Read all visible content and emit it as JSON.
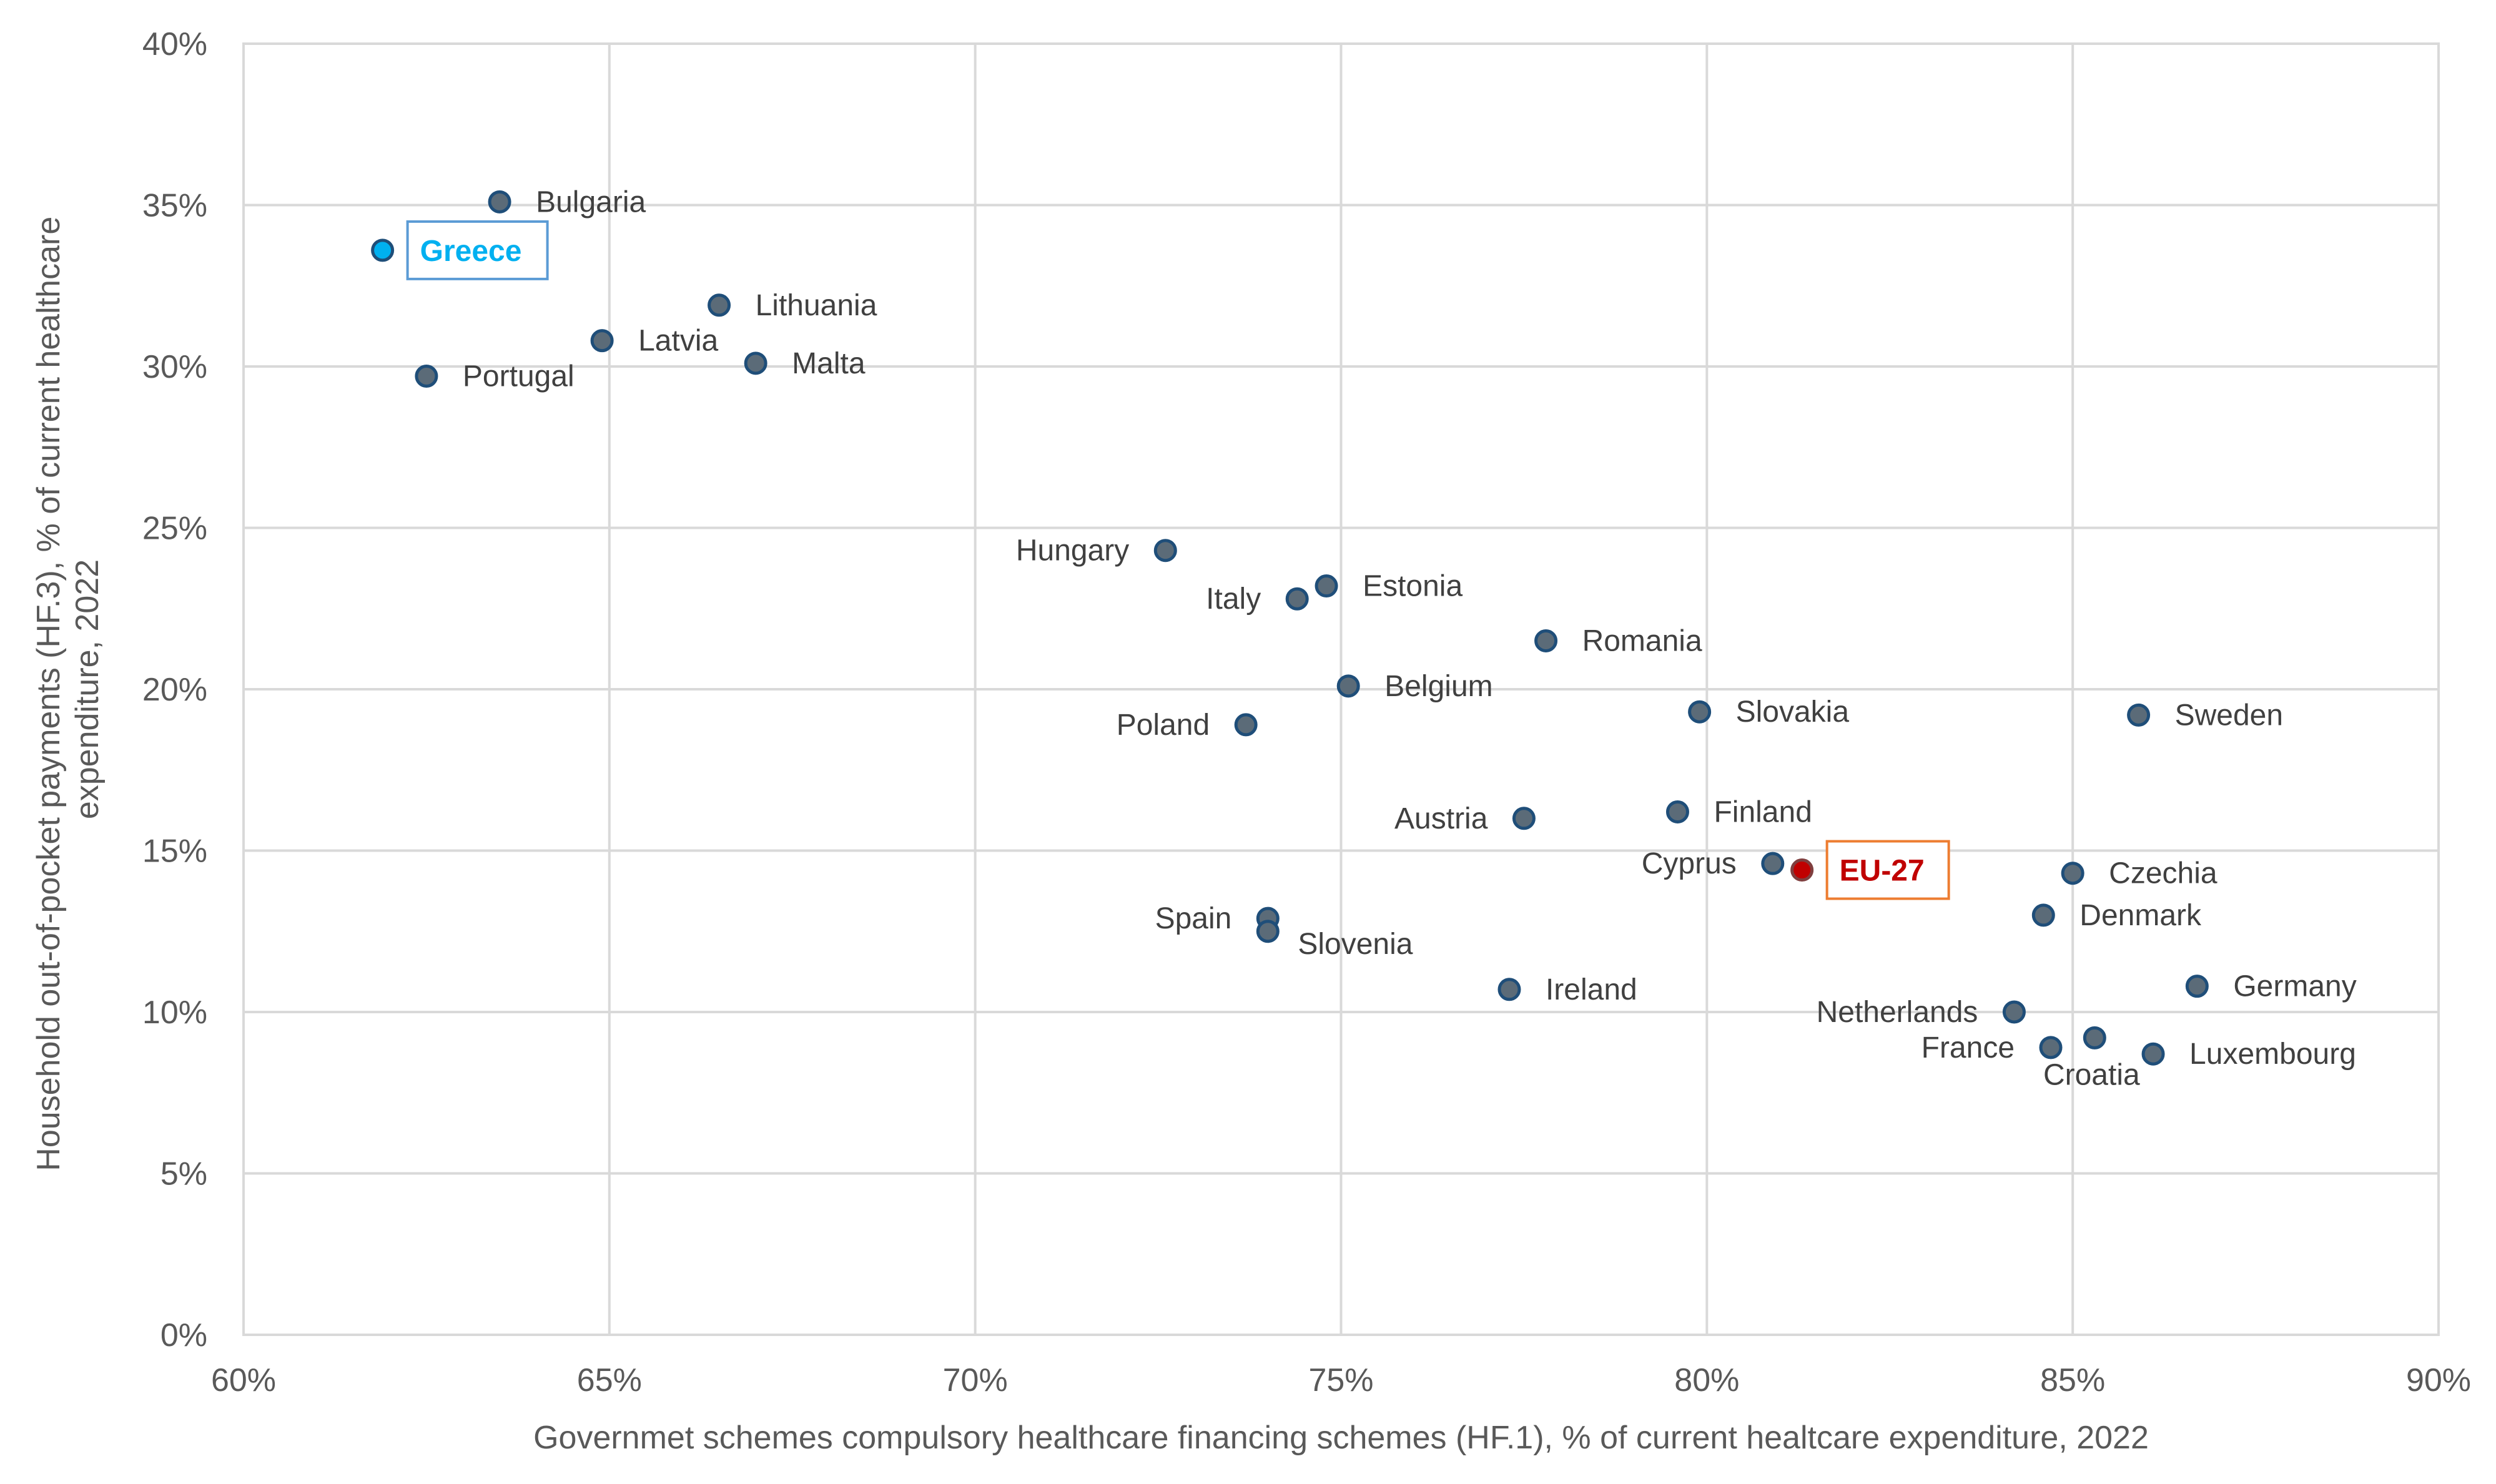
{
  "chart_data": {
    "type": "scatter",
    "title": "",
    "xlabel": "Governmet schemes compulsory healthcare financing schemes (HF.1), % of current healtcare expenditure, 2022",
    "ylabel_line1": "Household out-of-pocket payments (HF.3), % of current healthcare",
    "ylabel_line2": "expenditure, 2022",
    "xlim": [
      60,
      90
    ],
    "ylim": [
      0,
      40
    ],
    "x_ticks": [
      60,
      65,
      70,
      75,
      80,
      85,
      90
    ],
    "y_ticks": [
      0,
      5,
      10,
      15,
      20,
      25,
      30,
      35,
      40
    ],
    "x_tick_labels": [
      "60%",
      "65%",
      "70%",
      "75%",
      "80%",
      "85%",
      "90%"
    ],
    "y_tick_labels": [
      "0%",
      "5%",
      "10%",
      "15%",
      "20%",
      "25%",
      "30%",
      "35%",
      "40%"
    ],
    "grid": true,
    "colors": {
      "default_marker": "#5b6b78",
      "marker_edge": "#1f4e79",
      "greece": "#00b0f0",
      "eu27": "#c00000",
      "eu27_box": "#ed7d31",
      "greece_box": "#5b9bd5"
    },
    "points": [
      {
        "label": "Bulgaria",
        "x": 63.5,
        "y": 35.1,
        "pos": "right"
      },
      {
        "label": "Greece",
        "x": 61.9,
        "y": 33.6,
        "pos": "right",
        "highlight": "greece"
      },
      {
        "label": "Lithuania",
        "x": 66.5,
        "y": 31.9,
        "pos": "right"
      },
      {
        "label": "Latvia",
        "x": 64.9,
        "y": 30.8,
        "pos": "right"
      },
      {
        "label": "Malta",
        "x": 67.0,
        "y": 30.1,
        "pos": "right"
      },
      {
        "label": "Portugal",
        "x": 62.5,
        "y": 29.7,
        "pos": "right"
      },
      {
        "label": "Hungary",
        "x": 72.6,
        "y": 24.3,
        "pos": "left"
      },
      {
        "label": "Estonia",
        "x": 74.8,
        "y": 23.2,
        "pos": "right"
      },
      {
        "label": "Italy",
        "x": 74.4,
        "y": 22.8,
        "pos": "left"
      },
      {
        "label": "Romania",
        "x": 77.8,
        "y": 21.5,
        "pos": "right"
      },
      {
        "label": "Belgium",
        "x": 75.1,
        "y": 20.1,
        "pos": "right"
      },
      {
        "label": "Slovakia",
        "x": 79.9,
        "y": 19.3,
        "pos": "right"
      },
      {
        "label": "Sweden",
        "x": 85.9,
        "y": 19.2,
        "pos": "right"
      },
      {
        "label": "Poland",
        "x": 73.7,
        "y": 18.9,
        "pos": "left"
      },
      {
        "label": "Finland",
        "x": 79.6,
        "y": 16.2,
        "pos": "right"
      },
      {
        "label": "Austria",
        "x": 77.5,
        "y": 16.0,
        "pos": "left"
      },
      {
        "label": "Cyprus",
        "x": 80.9,
        "y": 14.6,
        "pos": "left"
      },
      {
        "label": "EU-27",
        "x": 81.3,
        "y": 14.4,
        "pos": "right",
        "highlight": "eu27"
      },
      {
        "label": "Czechia",
        "x": 85.0,
        "y": 14.3,
        "pos": "right"
      },
      {
        "label": "Denmark",
        "x": 84.6,
        "y": 13.0,
        "pos": "right"
      },
      {
        "label": "Spain",
        "x": 74.0,
        "y": 12.9,
        "pos": "left"
      },
      {
        "label": "Slovenia",
        "x": 74.0,
        "y": 12.5,
        "pos": "right-below"
      },
      {
        "label": "Germany",
        "x": 86.7,
        "y": 10.8,
        "pos": "right"
      },
      {
        "label": "Ireland",
        "x": 77.3,
        "y": 10.7,
        "pos": "right"
      },
      {
        "label": "Netherlands",
        "x": 84.2,
        "y": 10.0,
        "pos": "left"
      },
      {
        "label": "Croatia",
        "x": 85.3,
        "y": 9.2,
        "pos": "below"
      },
      {
        "label": "France",
        "x": 84.7,
        "y": 8.9,
        "pos": "left"
      },
      {
        "label": "Luxembourg",
        "x": 86.1,
        "y": 8.7,
        "pos": "right"
      }
    ]
  }
}
